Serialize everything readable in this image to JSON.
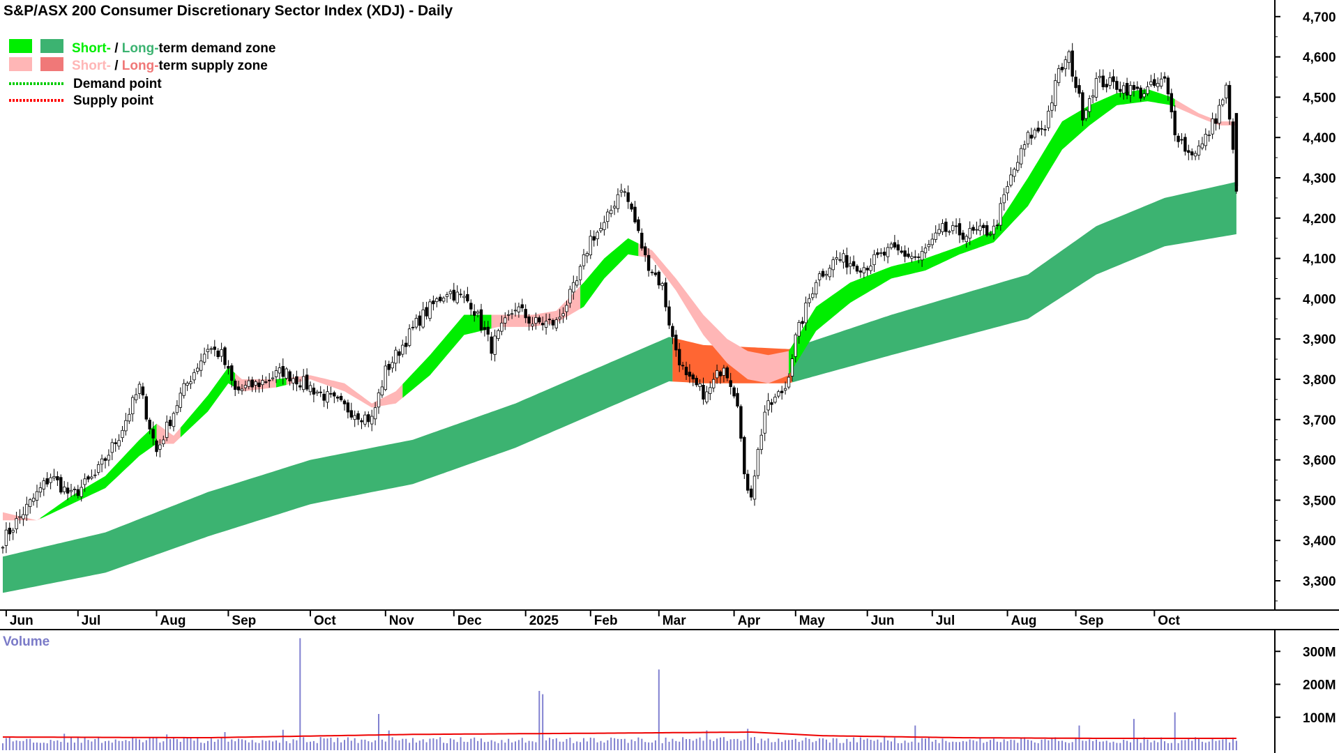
{
  "title": "S&P/ASX 200 Consumer Discretionary Sector Index (XDJ) - Daily",
  "legend": {
    "zone1": {
      "short": "Short-",
      "sep": " / ",
      "long": "Long-",
      "rest": "term demand zone"
    },
    "zone2": {
      "short": "Short-",
      "sep": " / ",
      "long": "Long-",
      "rest": "term supply zone"
    },
    "demand_point": "Demand point",
    "supply_point": "Supply point"
  },
  "volume_label": "Volume",
  "colors": {
    "short_demand": "#00ee00",
    "long_demand": "#3cb371",
    "short_supply": "#ffb6b6",
    "long_supply": "#ff6633",
    "legend_long_supply": "#f07878",
    "demand_point": "#00cc00",
    "supply_point": "#ff0000",
    "candle": "#000000",
    "volume_bar": "#8080d0",
    "volume_avg": "#ee0000",
    "axis": "#000000"
  },
  "chart_data": [
    {
      "type": "candlestick",
      "title": "S&P/ASX 200 Consumer Discretionary Sector Index (XDJ) - Daily",
      "x_ticks": [
        "Jun",
        "Jul",
        "Aug",
        "Sep",
        "Oct",
        "Nov",
        "Dec",
        "2025",
        "Feb",
        "Mar",
        "Apr",
        "May",
        "Jun",
        "Jul",
        "Aug",
        "Sep",
        "Oct"
      ],
      "y_ticks": [
        "3,300",
        "3,400",
        "3,500",
        "3,600",
        "3,700",
        "3,800",
        "3,900",
        "4,000",
        "4,100",
        "4,200",
        "4,300",
        "4,400",
        "4,500",
        "4,600",
        "4,700"
      ],
      "ylim": [
        3210,
        4740
      ],
      "grid": false,
      "legend_position": "top-left",
      "closes": [
        {
          "x": 0,
          "y": 3400
        },
        {
          "x": 6,
          "y": 3470
        },
        {
          "x": 14,
          "y": 3560
        },
        {
          "x": 20,
          "y": 3510
        },
        {
          "x": 27,
          "y": 3560
        },
        {
          "x": 34,
          "y": 3660
        },
        {
          "x": 40,
          "y": 3780
        },
        {
          "x": 45,
          "y": 3620
        },
        {
          "x": 52,
          "y": 3760
        },
        {
          "x": 60,
          "y": 3880
        },
        {
          "x": 64,
          "y": 3860
        },
        {
          "x": 68,
          "y": 3770
        },
        {
          "x": 75,
          "y": 3790
        },
        {
          "x": 82,
          "y": 3820
        },
        {
          "x": 90,
          "y": 3780
        },
        {
          "x": 100,
          "y": 3730
        },
        {
          "x": 108,
          "y": 3700
        },
        {
          "x": 112,
          "y": 3820
        },
        {
          "x": 122,
          "y": 3950
        },
        {
          "x": 130,
          "y": 4020
        },
        {
          "x": 137,
          "y": 3990
        },
        {
          "x": 143,
          "y": 3880
        },
        {
          "x": 150,
          "y": 3980
        },
        {
          "x": 155,
          "y": 3940
        },
        {
          "x": 162,
          "y": 3940
        },
        {
          "x": 168,
          "y": 4040
        },
        {
          "x": 172,
          "y": 4150
        },
        {
          "x": 176,
          "y": 4180
        },
        {
          "x": 181,
          "y": 4280
        },
        {
          "x": 184,
          "y": 4220
        },
        {
          "x": 188,
          "y": 4100
        },
        {
          "x": 193,
          "y": 4030
        },
        {
          "x": 196,
          "y": 3900
        },
        {
          "x": 200,
          "y": 3800
        },
        {
          "x": 206,
          "y": 3760
        },
        {
          "x": 211,
          "y": 3840
        },
        {
          "x": 215,
          "y": 3750
        },
        {
          "x": 217,
          "y": 3550
        },
        {
          "x": 219,
          "y": 3520
        },
        {
          "x": 223,
          "y": 3720
        },
        {
          "x": 229,
          "y": 3780
        },
        {
          "x": 232,
          "y": 3900
        },
        {
          "x": 238,
          "y": 4050
        },
        {
          "x": 244,
          "y": 4100
        },
        {
          "x": 252,
          "y": 4080
        },
        {
          "x": 260,
          "y": 4120
        },
        {
          "x": 268,
          "y": 4100
        },
        {
          "x": 275,
          "y": 4170
        },
        {
          "x": 282,
          "y": 4160
        },
        {
          "x": 290,
          "y": 4170
        },
        {
          "x": 295,
          "y": 4300
        },
        {
          "x": 300,
          "y": 4400
        },
        {
          "x": 305,
          "y": 4430
        },
        {
          "x": 309,
          "y": 4560
        },
        {
          "x": 312,
          "y": 4600
        },
        {
          "x": 316,
          "y": 4460
        },
        {
          "x": 320,
          "y": 4540
        },
        {
          "x": 326,
          "y": 4530
        },
        {
          "x": 333,
          "y": 4510
        },
        {
          "x": 340,
          "y": 4540
        },
        {
          "x": 343,
          "y": 4420
        },
        {
          "x": 347,
          "y": 4360
        },
        {
          "x": 351,
          "y": 4380
        },
        {
          "x": 355,
          "y": 4450
        },
        {
          "x": 358,
          "y": 4520
        },
        {
          "x": 361,
          "y": 4280
        }
      ],
      "short_zone_upper": [
        {
          "x": 0,
          "y": 3470
        },
        {
          "x": 10,
          "y": 3450
        },
        {
          "x": 20,
          "y": 3510
        },
        {
          "x": 30,
          "y": 3560
        },
        {
          "x": 40,
          "y": 3650
        },
        {
          "x": 45,
          "y": 3690
        },
        {
          "x": 50,
          "y": 3660
        },
        {
          "x": 60,
          "y": 3760
        },
        {
          "x": 66,
          "y": 3830
        },
        {
          "x": 70,
          "y": 3800
        },
        {
          "x": 80,
          "y": 3800
        },
        {
          "x": 90,
          "y": 3810
        },
        {
          "x": 100,
          "y": 3790
        },
        {
          "x": 108,
          "y": 3740
        },
        {
          "x": 115,
          "y": 3770
        },
        {
          "x": 125,
          "y": 3860
        },
        {
          "x": 135,
          "y": 3960
        },
        {
          "x": 145,
          "y": 3960
        },
        {
          "x": 155,
          "y": 3960
        },
        {
          "x": 162,
          "y": 3970
        },
        {
          "x": 170,
          "y": 4040
        },
        {
          "x": 176,
          "y": 4100
        },
        {
          "x": 183,
          "y": 4150
        },
        {
          "x": 190,
          "y": 4120
        },
        {
          "x": 197,
          "y": 4050
        },
        {
          "x": 205,
          "y": 3960
        },
        {
          "x": 212,
          "y": 3900
        },
        {
          "x": 218,
          "y": 3870
        },
        {
          "x": 224,
          "y": 3860
        },
        {
          "x": 230,
          "y": 3870
        },
        {
          "x": 238,
          "y": 3980
        },
        {
          "x": 248,
          "y": 4040
        },
        {
          "x": 260,
          "y": 4080
        },
        {
          "x": 270,
          "y": 4100
        },
        {
          "x": 280,
          "y": 4130
        },
        {
          "x": 290,
          "y": 4170
        },
        {
          "x": 300,
          "y": 4300
        },
        {
          "x": 310,
          "y": 4440
        },
        {
          "x": 318,
          "y": 4480
        },
        {
          "x": 326,
          "y": 4510
        },
        {
          "x": 335,
          "y": 4520
        },
        {
          "x": 342,
          "y": 4500
        },
        {
          "x": 350,
          "y": 4460
        },
        {
          "x": 356,
          "y": 4440
        },
        {
          "x": 361,
          "y": 4440
        }
      ],
      "short_zone_lower": [
        {
          "x": 0,
          "y": 3450
        },
        {
          "x": 10,
          "y": 3450
        },
        {
          "x": 20,
          "y": 3490
        },
        {
          "x": 30,
          "y": 3530
        },
        {
          "x": 40,
          "y": 3610
        },
        {
          "x": 45,
          "y": 3640
        },
        {
          "x": 50,
          "y": 3640
        },
        {
          "x": 60,
          "y": 3720
        },
        {
          "x": 66,
          "y": 3790
        },
        {
          "x": 70,
          "y": 3770
        },
        {
          "x": 80,
          "y": 3780
        },
        {
          "x": 90,
          "y": 3800
        },
        {
          "x": 100,
          "y": 3770
        },
        {
          "x": 108,
          "y": 3730
        },
        {
          "x": 115,
          "y": 3740
        },
        {
          "x": 125,
          "y": 3810
        },
        {
          "x": 135,
          "y": 3910
        },
        {
          "x": 145,
          "y": 3930
        },
        {
          "x": 155,
          "y": 3930
        },
        {
          "x": 162,
          "y": 3940
        },
        {
          "x": 170,
          "y": 3980
        },
        {
          "x": 176,
          "y": 4050
        },
        {
          "x": 183,
          "y": 4110
        },
        {
          "x": 190,
          "y": 4100
        },
        {
          "x": 197,
          "y": 4020
        },
        {
          "x": 205,
          "y": 3910
        },
        {
          "x": 212,
          "y": 3840
        },
        {
          "x": 218,
          "y": 3800
        },
        {
          "x": 224,
          "y": 3790
        },
        {
          "x": 230,
          "y": 3810
        },
        {
          "x": 238,
          "y": 3920
        },
        {
          "x": 248,
          "y": 3990
        },
        {
          "x": 260,
          "y": 4050
        },
        {
          "x": 270,
          "y": 4070
        },
        {
          "x": 280,
          "y": 4110
        },
        {
          "x": 290,
          "y": 4140
        },
        {
          "x": 300,
          "y": 4230
        },
        {
          "x": 310,
          "y": 4370
        },
        {
          "x": 318,
          "y": 4430
        },
        {
          "x": 326,
          "y": 4480
        },
        {
          "x": 335,
          "y": 4490
        },
        {
          "x": 342,
          "y": 4480
        },
        {
          "x": 350,
          "y": 4450
        },
        {
          "x": 356,
          "y": 4430
        },
        {
          "x": 361,
          "y": 4430
        }
      ],
      "long_zone_upper": [
        {
          "x": 0,
          "y": 3360
        },
        {
          "x": 30,
          "y": 3420
        },
        {
          "x": 60,
          "y": 3520
        },
        {
          "x": 90,
          "y": 3600
        },
        {
          "x": 120,
          "y": 3650
        },
        {
          "x": 150,
          "y": 3740
        },
        {
          "x": 180,
          "y": 3850
        },
        {
          "x": 195,
          "y": 3905
        },
        {
          "x": 205,
          "y": 3885
        },
        {
          "x": 230,
          "y": 3875
        },
        {
          "x": 260,
          "y": 3960
        },
        {
          "x": 300,
          "y": 4060
        },
        {
          "x": 320,
          "y": 4180
        },
        {
          "x": 340,
          "y": 4250
        },
        {
          "x": 361,
          "y": 4290
        }
      ],
      "long_zone_lower": [
        {
          "x": 0,
          "y": 3270
        },
        {
          "x": 30,
          "y": 3320
        },
        {
          "x": 60,
          "y": 3410
        },
        {
          "x": 90,
          "y": 3490
        },
        {
          "x": 120,
          "y": 3540
        },
        {
          "x": 150,
          "y": 3630
        },
        {
          "x": 180,
          "y": 3740
        },
        {
          "x": 195,
          "y": 3795
        },
        {
          "x": 205,
          "y": 3790
        },
        {
          "x": 230,
          "y": 3790
        },
        {
          "x": 260,
          "y": 3860
        },
        {
          "x": 300,
          "y": 3950
        },
        {
          "x": 320,
          "y": 4060
        },
        {
          "x": 340,
          "y": 4130
        },
        {
          "x": 361,
          "y": 4160
        }
      ]
    },
    {
      "type": "bar",
      "title": "Volume",
      "y_ticks": [
        "100M",
        "200M",
        "300M"
      ],
      "ylim": [
        0,
        345
      ],
      "typical_volume": 35,
      "average_volume": [
        {
          "x": 0,
          "y": 40
        },
        {
          "x": 60,
          "y": 38
        },
        {
          "x": 120,
          "y": 48
        },
        {
          "x": 150,
          "y": 50
        },
        {
          "x": 180,
          "y": 52
        },
        {
          "x": 219,
          "y": 55
        },
        {
          "x": 240,
          "y": 44
        },
        {
          "x": 280,
          "y": 38
        },
        {
          "x": 320,
          "y": 36
        },
        {
          "x": 361,
          "y": 36
        }
      ],
      "volume_spikes": [
        {
          "x": 18,
          "y": 50
        },
        {
          "x": 48,
          "y": 48
        },
        {
          "x": 65,
          "y": 55
        },
        {
          "x": 82,
          "y": 62
        },
        {
          "x": 87,
          "y": 340
        },
        {
          "x": 110,
          "y": 110
        },
        {
          "x": 113,
          "y": 60
        },
        {
          "x": 157,
          "y": 180
        },
        {
          "x": 158,
          "y": 170
        },
        {
          "x": 192,
          "y": 245
        },
        {
          "x": 206,
          "y": 60
        },
        {
          "x": 218,
          "y": 65
        },
        {
          "x": 267,
          "y": 75
        },
        {
          "x": 315,
          "y": 75
        },
        {
          "x": 331,
          "y": 95
        },
        {
          "x": 343,
          "y": 115
        }
      ]
    }
  ]
}
